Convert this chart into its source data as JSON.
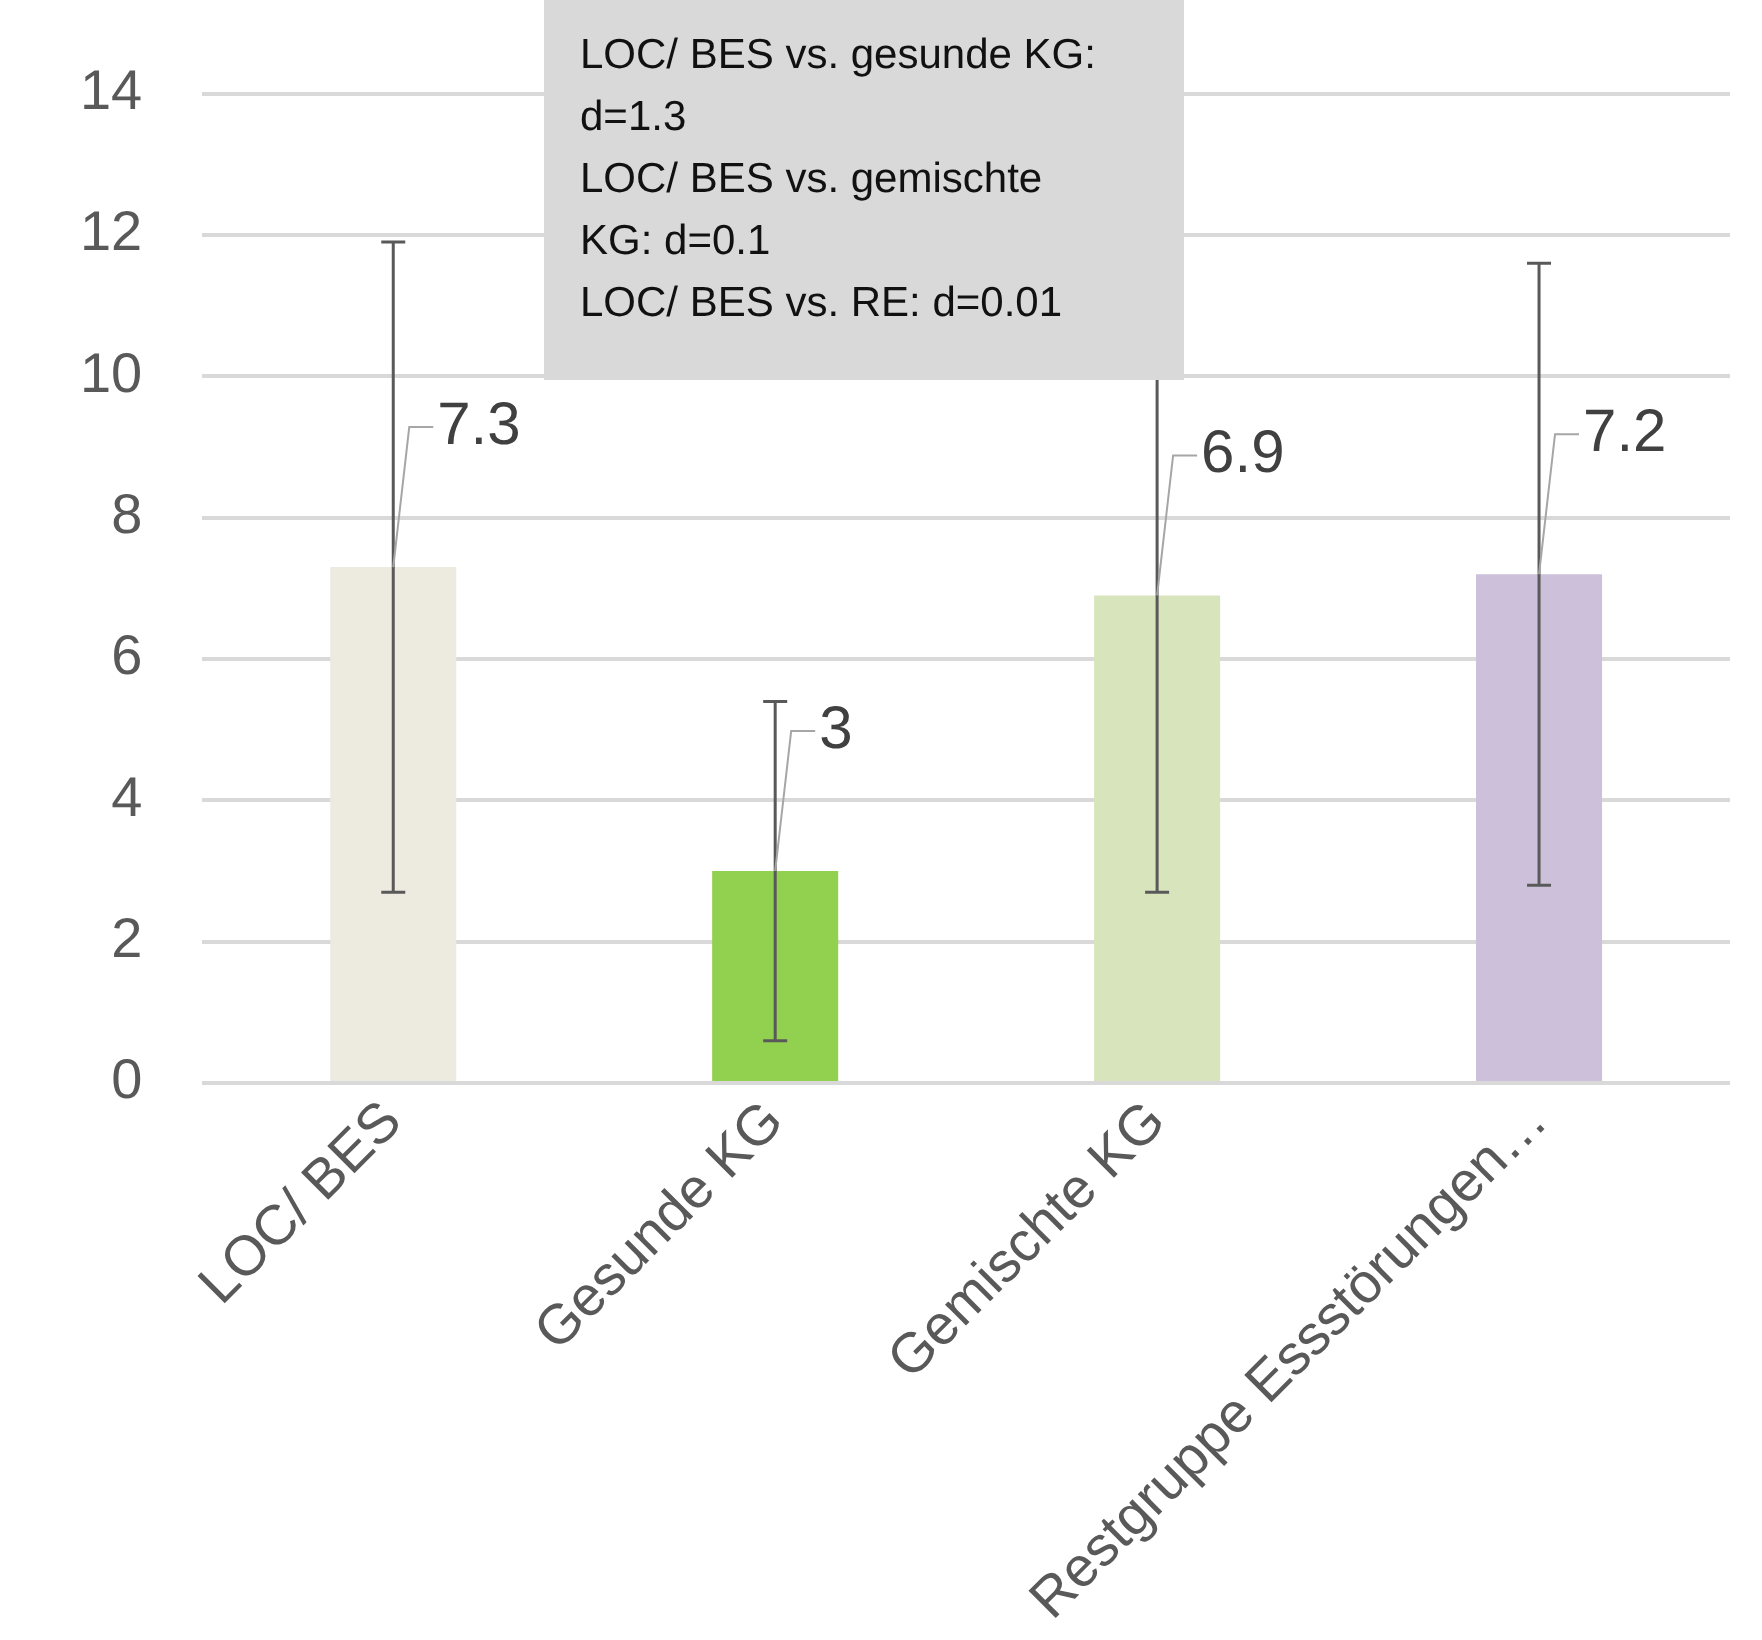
{
  "chart_data": {
    "type": "bar",
    "categories": [
      "LOC/ BES",
      "Gesunde KG",
      "Gemischte KG",
      "Restgruppe Essstörungen…"
    ],
    "values": [
      7.3,
      3,
      6.9,
      7.2
    ],
    "colors": [
      "#edebe0",
      "#92d050",
      "#d8e4bc",
      "#ccc0da"
    ],
    "errors": [
      4.6,
      2.4,
      4.2,
      4.4
    ],
    "ylim": [
      0,
      14
    ],
    "yticks": [
      0,
      2,
      4,
      6,
      8,
      10,
      12,
      14
    ],
    "grid": "y",
    "data_labels": true,
    "legend": false,
    "annotations": [
      "LOC/ BES vs. gesunde KG: d=1.3",
      "LOC/ BES vs. gemischte KG: d=0.1",
      "LOC/ BES vs. RE: d=0.01"
    ]
  }
}
